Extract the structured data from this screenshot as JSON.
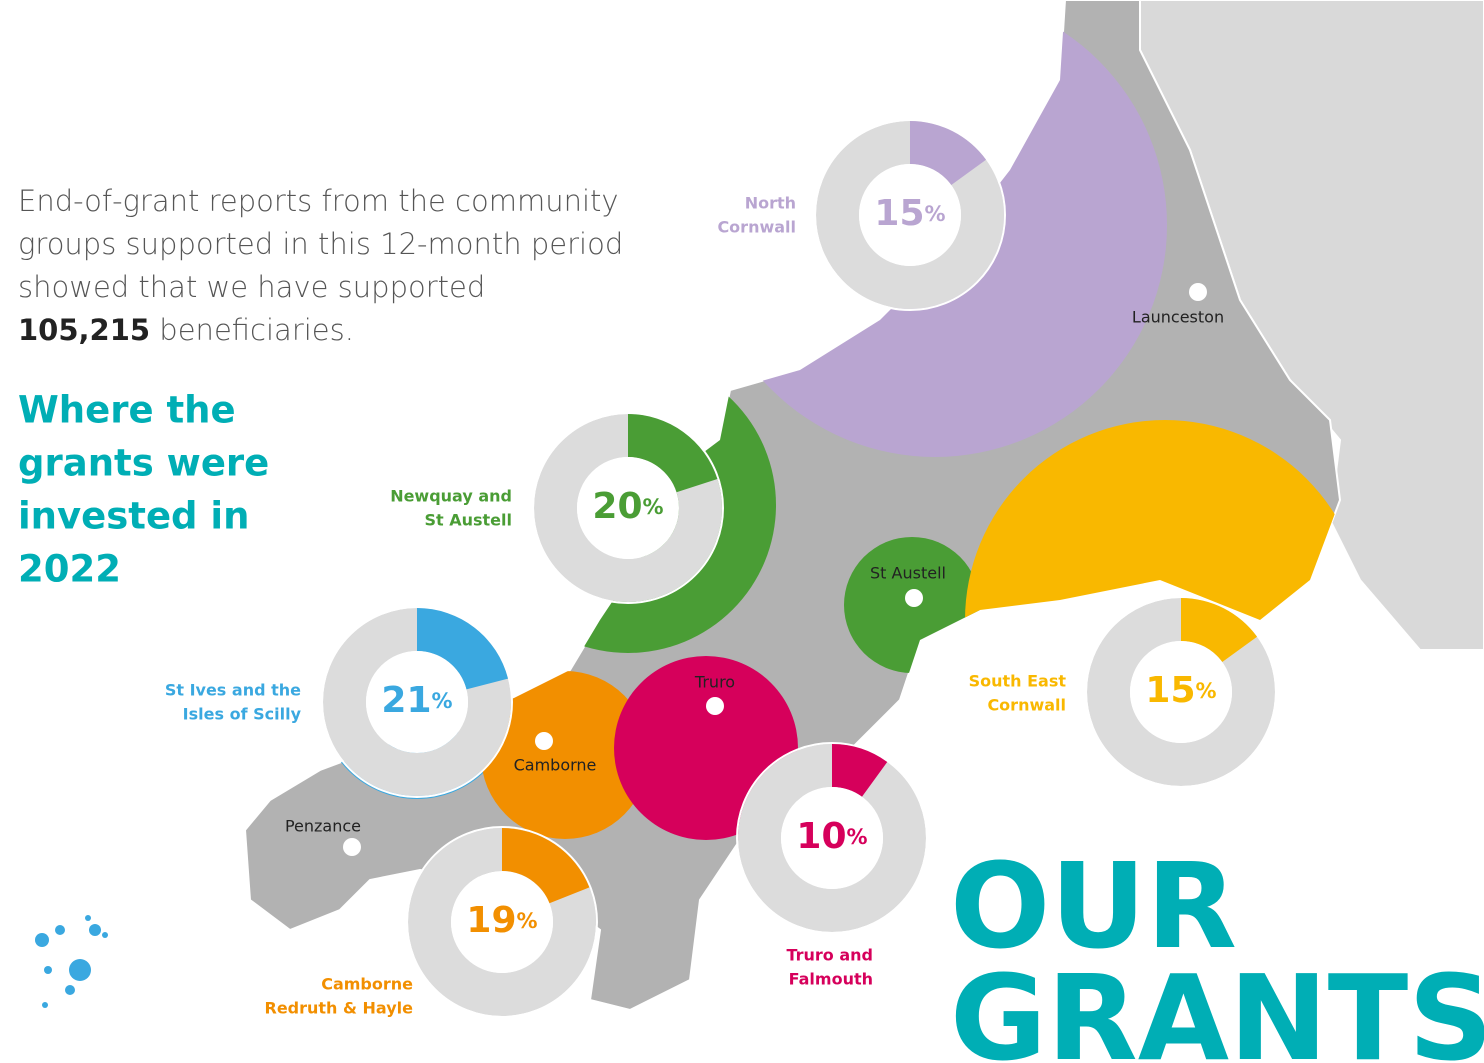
{
  "intro": {
    "lines": [
      "End-of-grant reports from the community",
      "groups supported in this 12-month period",
      "showed that we have supported"
    ],
    "count": "105,215",
    "after": " beneficiaries."
  },
  "heading": {
    "lines": [
      "Where the",
      "grants were",
      "invested in",
      "2022"
    ]
  },
  "title": {
    "lines": [
      "OUR",
      "GRANTS"
    ]
  },
  "unit": "%",
  "regions": [
    {
      "name_lines": [
        "North",
        "Cornwall"
      ],
      "value": 15,
      "color": "#b9a5d1"
    },
    {
      "name_lines": [
        "Newquay and",
        "St Austell"
      ],
      "value": 20,
      "color": "#4a9d35"
    },
    {
      "name_lines": [
        "St Ives and the",
        "Isles of Scilly"
      ],
      "value": 21,
      "color": "#3aa8e0"
    },
    {
      "name_lines": [
        "South East",
        "Cornwall"
      ],
      "value": 15,
      "color": "#f9b800"
    },
    {
      "name_lines": [
        "Camborne",
        "Redruth & Hayle"
      ],
      "value": 19,
      "color": "#f28f00"
    },
    {
      "name_lines": [
        "Truro and",
        "Falmouth"
      ],
      "value": 10,
      "color": "#d6005b"
    }
  ],
  "towns": [
    "Launceston",
    "St Austell",
    "Truro",
    "Camborne",
    "Penzance"
  ]
}
